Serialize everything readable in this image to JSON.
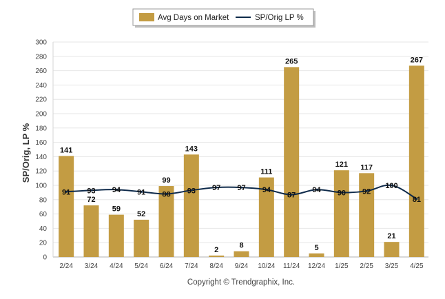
{
  "chart_data": {
    "type": "bar",
    "categories": [
      "2/24",
      "3/24",
      "4/24",
      "5/24",
      "6/24",
      "7/24",
      "8/24",
      "9/24",
      "10/24",
      "11/24",
      "12/24",
      "1/25",
      "2/25",
      "3/25",
      "4/25"
    ],
    "series": [
      {
        "name": "Avg Days on Market",
        "type": "bar",
        "color": "#c39c43",
        "values": [
          141,
          72,
          59,
          52,
          99,
          143,
          2,
          8,
          111,
          265,
          5,
          121,
          117,
          21,
          267
        ]
      },
      {
        "name": "SP/Orig LP %",
        "type": "line",
        "color": "#0e2a4a",
        "values": [
          91,
          93,
          94,
          91,
          88,
          93,
          97,
          97,
          94,
          87,
          94,
          90,
          92,
          100,
          81
        ]
      }
    ],
    "ylabel": "SP/Orig, LP %",
    "ylim": [
      0,
      300
    ],
    "yticks": [
      0,
      20,
      40,
      60,
      80,
      100,
      120,
      140,
      160,
      180,
      200,
      220,
      240,
      260,
      280,
      300
    ],
    "grid": true,
    "legend_position": "top-center",
    "footer": "Copyright © Trendgraphix, Inc."
  }
}
